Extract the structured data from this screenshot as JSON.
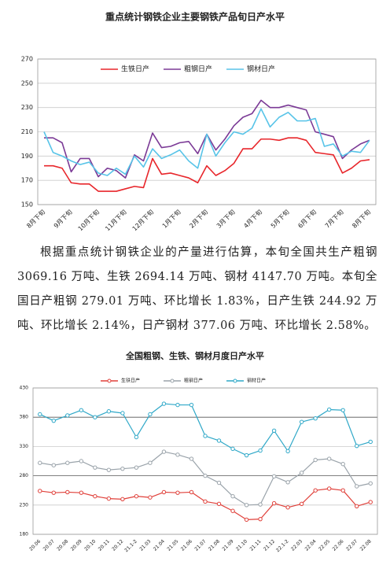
{
  "chart_data": [
    {
      "type": "line",
      "title": "重点统计钢铁企业主要钢铁产品旬日产水平",
      "categories": [
        "8月下旬",
        null,
        null,
        "9月下旬",
        null,
        null,
        "10月下旬",
        null,
        null,
        "11月下旬",
        null,
        null,
        "12月下旬",
        null,
        null,
        "1月下旬",
        null,
        null,
        "2月下旬",
        null,
        null,
        "3月下旬",
        null,
        null,
        "4月下旬",
        null,
        null,
        "5月下旬",
        null,
        null,
        "6月下旬",
        null,
        null,
        "7月下旬",
        null,
        null,
        "8月下旬"
      ],
      "series": [
        {
          "name": "生铁日产",
          "color": "#e8262b",
          "values": [
            182,
            182,
            180,
            168,
            167,
            167,
            161,
            161,
            161,
            163,
            165,
            164,
            188,
            175,
            176,
            174,
            172,
            168,
            182,
            174,
            178,
            184,
            196,
            196,
            204,
            204,
            203,
            205,
            205,
            203,
            193,
            192,
            191,
            176,
            180,
            186,
            187
          ]
        },
        {
          "name": "粗钢日产",
          "color": "#7b3a96",
          "values": [
            205,
            205,
            201,
            177,
            188,
            188,
            173,
            180,
            178,
            172,
            191,
            186,
            209,
            197,
            198,
            201,
            202,
            192,
            208,
            195,
            204,
            215,
            222,
            225,
            236,
            230,
            230,
            232,
            230,
            228,
            210,
            208,
            206,
            188,
            195,
            200,
            203
          ]
        },
        {
          "name": "钢材日产",
          "color": "#58c4e8",
          "values": [
            210,
            193,
            190,
            186,
            183,
            185,
            176,
            174,
            180,
            175,
            190,
            181,
            196,
            188,
            191,
            195,
            186,
            180,
            208,
            190,
            201,
            210,
            208,
            213,
            229,
            214,
            222,
            226,
            219,
            219,
            221,
            198,
            200,
            190,
            194,
            193,
            203
          ]
        }
      ],
      "ylim": [
        150,
        270
      ],
      "yticks": [
        150,
        170,
        190,
        210,
        230,
        250,
        270
      ],
      "grid": true,
      "legend": "top",
      "markers": false
    },
    {
      "type": "line",
      "title": "全国粗钢、生铁、钢材月度日产水平",
      "categories": [
        "20.06",
        "20.07",
        "20.08",
        "20.09",
        "20.10",
        "20.11",
        "20.12",
        "21.1-2",
        "21.03",
        "21.04",
        "21.05",
        "21.06",
        "21.07",
        "21.08",
        "21.09",
        "21.10",
        "21.11",
        "21.12",
        "22.1-2",
        "22.03",
        "22.04",
        "22.05",
        "22.06",
        "22.07",
        "22.08"
      ],
      "series": [
        {
          "name": "生铁日产",
          "color": "#e0403a",
          "values": [
            254,
            251,
            252,
            251,
            245,
            241,
            240,
            245,
            243,
            252,
            251,
            252,
            236,
            232,
            220,
            205,
            206,
            233,
            226,
            232,
            255,
            258,
            255,
            228,
            235
          ]
        },
        {
          "name": "粗钢日产",
          "color": "#9aa3aa",
          "values": [
            302,
            298,
            302,
            305,
            294,
            290,
            292,
            294,
            302,
            321,
            316,
            309,
            280,
            268,
            245,
            230,
            231,
            279,
            269,
            285,
            307,
            309,
            300,
            262,
            267
          ]
        },
        {
          "name": "钢材日产",
          "color": "#2fa8c8",
          "values": [
            385,
            374,
            383,
            392,
            380,
            390,
            387,
            346,
            385,
            403,
            401,
            401,
            348,
            340,
            326,
            315,
            323,
            357,
            322,
            372,
            378,
            393,
            392,
            331,
            338
          ]
        }
      ],
      "ylim": [
        180,
        430
      ],
      "yticks": [
        180,
        230,
        280,
        330,
        380,
        430
      ],
      "grid": true,
      "legend": "top",
      "markers": true
    }
  ],
  "paragraph": "根据重点统计钢铁企业的产量进行估算，本旬全国共生产粗钢 3069.16 万吨、生铁 2694.14 万吨、钢材 4147.70 万吨。本旬全国日产粗钢 279.01 万吨、环比增长 1.83%，日产生铁 244.92 万吨、环比增长 2.14%，日产钢材 377.06 万吨、环比增长 2.58%。"
}
